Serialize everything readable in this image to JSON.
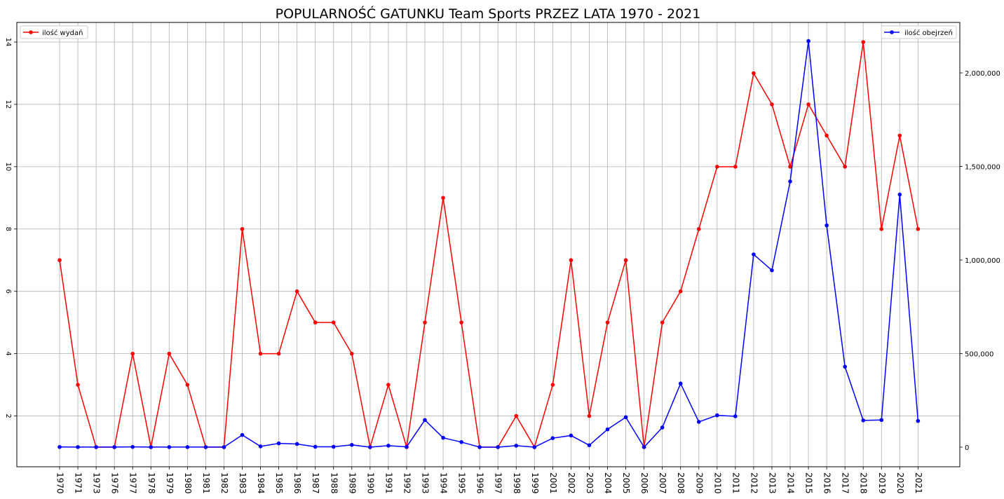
{
  "chart_data": {
    "type": "line",
    "title": "POPULARNOŚĆ GATUNKU Team Sports PRZEZ LATA 1970 - 2021",
    "categories": [
      "1970",
      "1971",
      "1973",
      "1976",
      "1977",
      "1978",
      "1979",
      "1980",
      "1981",
      "1982",
      "1983",
      "1984",
      "1985",
      "1986",
      "1987",
      "1988",
      "1989",
      "1990",
      "1991",
      "1992",
      "1993",
      "1994",
      "1995",
      "1996",
      "1997",
      "1998",
      "1999",
      "2001",
      "2002",
      "2003",
      "2004",
      "2005",
      "2006",
      "2007",
      "2008",
      "2009",
      "2010",
      "2011",
      "2012",
      "2013",
      "2014",
      "2015",
      "2016",
      "2017",
      "2018",
      "2019",
      "2020",
      "2021"
    ],
    "series": [
      {
        "name": "ilość wydań",
        "color": "#ff0000",
        "axis": "left",
        "values": [
          7,
          3,
          1,
          1,
          4,
          1,
          4,
          3,
          1,
          1,
          8,
          4,
          4,
          6,
          5,
          5,
          4,
          1,
          3,
          1,
          5,
          9,
          5,
          1,
          1,
          2,
          1,
          3,
          7,
          2,
          5,
          7,
          1,
          5,
          6,
          8,
          10,
          10,
          13,
          12,
          10,
          12,
          11,
          10,
          14,
          8,
          11,
          8
        ]
      },
      {
        "name": "ilość obejrzeń",
        "color": "#0000ff",
        "axis": "right",
        "values": [
          800,
          500,
          300,
          300,
          1200,
          300,
          300,
          300,
          300,
          300,
          65000,
          4000,
          20000,
          17000,
          2000,
          2000,
          12000,
          0,
          8000,
          1500,
          145000,
          50000,
          27000,
          200,
          200,
          8000,
          0,
          48000,
          62000,
          10000,
          95000,
          160000,
          200,
          105000,
          340000,
          135000,
          170000,
          165000,
          1030000,
          945000,
          1420000,
          2170000,
          1185000,
          430000,
          143000,
          145000,
          1350000,
          140000
        ]
      }
    ],
    "y_left": {
      "min": 0,
      "max": 14.5,
      "ticks": [
        "2",
        "4",
        "6",
        "8",
        "10",
        "12",
        "14"
      ]
    },
    "y_right": {
      "min": 0,
      "max": 2180000,
      "ticks": [
        "0",
        "500,000",
        "1,000,000",
        "1,500,000",
        "2,000,000"
      ]
    },
    "grid": true,
    "legend_left_placement": "top-left",
    "legend_right_placement": "top-right"
  }
}
